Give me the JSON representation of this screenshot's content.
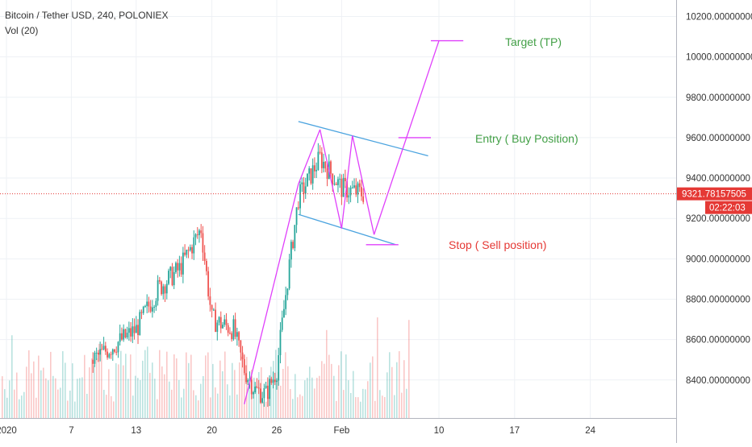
{
  "header": {
    "symbol_line": "Bitcoin / Tether USD, 240, POLONIEX",
    "volume_line": "Vol (20)"
  },
  "annotations": {
    "target": "Target (TP)",
    "entry": "Entry ( Buy Position)",
    "stop": "Stop ( Sell position)"
  },
  "price_scale": {
    "last_price": "9321.78157505",
    "countdown": "02:22:03",
    "ticks": [
      "10200.00000000",
      "10000.00000000",
      "9800.00000000",
      "9600.00000000",
      "9400.00000000",
      "9200.00000000",
      "9000.00000000",
      "8800.00000000",
      "8600.00000000",
      "8400.00000000"
    ]
  },
  "colors": {
    "up": "#26a69a",
    "down": "#ef5350",
    "trendline": "#4aa3df",
    "pattern_line": "#e040fb",
    "target_text": "#43a047",
    "stop_text": "#e53935",
    "price_line": "#e53935"
  },
  "chart_data": {
    "type": "candlestick",
    "title": "Bitcoin / Tether USD, 240, POLONIEX",
    "x_tick_labels": [
      "2020",
      "7",
      "13",
      "20",
      "26",
      "Feb",
      "10",
      "17",
      "24"
    ],
    "y_ticks": [
      8400,
      8600,
      8800,
      9000,
      9200,
      9400,
      9600,
      9800,
      10000,
      10200
    ],
    "ylim": [
      8220,
      10300
    ],
    "last_price": 9321.78157505,
    "volume_indicator": "Vol (20)",
    "price_path": [
      {
        "t": "Jan 9",
        "price": 8500
      },
      {
        "t": "Jan 13",
        "price": 8650
      },
      {
        "t": "Jan 15",
        "price": 8850
      },
      {
        "t": "Jan 17",
        "price": 8950
      },
      {
        "t": "Jan 19",
        "price": 9150
      },
      {
        "t": "Jan 20",
        "price": 8700
      },
      {
        "t": "Jan 22",
        "price": 8650
      },
      {
        "t": "Jan 23",
        "price": 8450
      },
      {
        "t": "Jan 24",
        "price": 8350
      },
      {
        "t": "Jan 25",
        "price": 8330
      },
      {
        "t": "Jan 26",
        "price": 8450
      },
      {
        "t": "Jan 27",
        "price": 8900
      },
      {
        "t": "Jan 28",
        "price": 9300
      },
      {
        "t": "Jan 30",
        "price": 9500
      },
      {
        "t": "Feb 1",
        "price": 9350
      },
      {
        "t": "Feb 3",
        "price": 9321.78
      }
    ],
    "channel_upper": [
      {
        "t": "Jan 28",
        "price": 9680
      },
      {
        "t": "Feb 9",
        "price": 9510
      }
    ],
    "channel_lower": [
      {
        "t": "Jan 28",
        "price": 9220
      },
      {
        "t": "Feb 6",
        "price": 9070
      }
    ],
    "pattern_path": [
      {
        "t": "Jan 23",
        "price": 8280
      },
      {
        "t": "Jan 28",
        "price": 9370
      },
      {
        "t": "Jan 30",
        "price": 9640
      },
      {
        "t": "Feb 1",
        "price": 9150
      },
      {
        "t": "Feb 2",
        "price": 9610
      },
      {
        "t": "Feb 4",
        "price": 9120
      },
      {
        "t": "Feb 10",
        "price": 10080
      }
    ],
    "levels": [
      {
        "label": "Target (TP)",
        "price": 10080
      },
      {
        "label": "Entry ( Buy Position)",
        "price": 9600
      },
      {
        "label": "Stop ( Sell position)",
        "price": 9070
      }
    ]
  }
}
